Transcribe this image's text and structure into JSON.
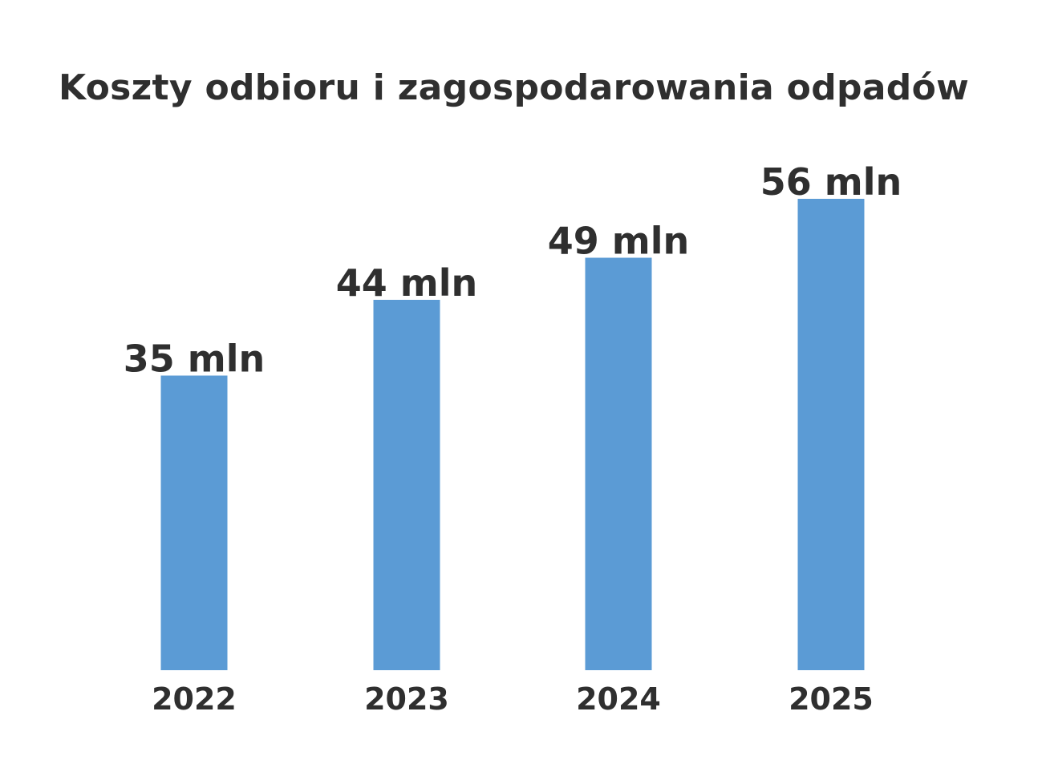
{
  "chart_data": {
    "type": "bar",
    "title": "Koszty odbioru i zagospodarowania odpadów",
    "categories": [
      "2022",
      "2023",
      "2024",
      "2025"
    ],
    "values": [
      35,
      44,
      49,
      56
    ],
    "data_labels": [
      "35 mln",
      "44 mln",
      "49 mln",
      "56 mln"
    ],
    "unit": "mln",
    "ylim": [
      0,
      56
    ],
    "grid": false,
    "legend": "none",
    "colors": {
      "bar": "#5b9bd5",
      "text": "#2f2f2f",
      "background": "#ffffff"
    }
  }
}
